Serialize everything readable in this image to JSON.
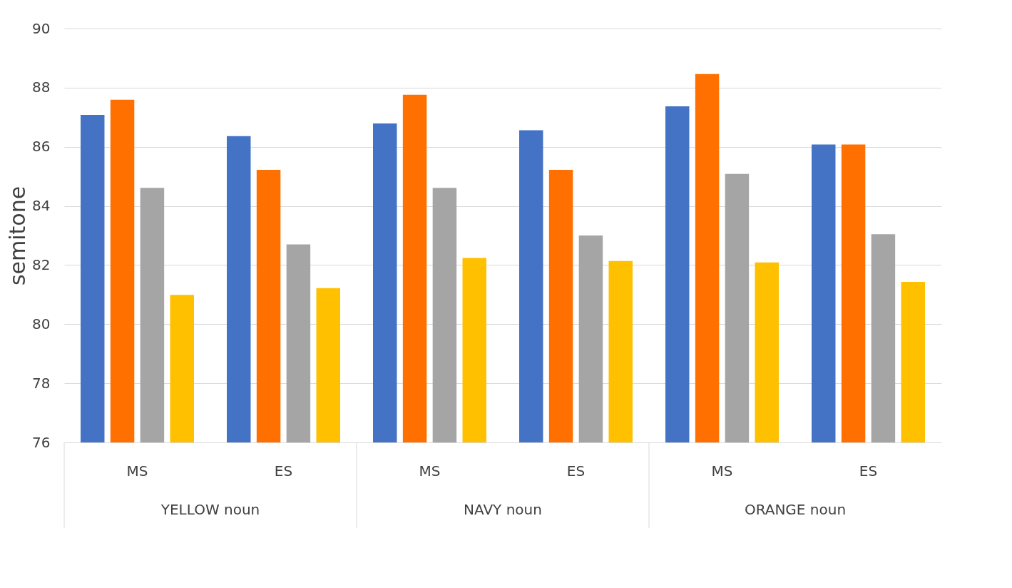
{
  "chart_data": {
    "type": "bar",
    "ylabel": "semitone",
    "categories": [
      "MS",
      "ES",
      "MS",
      "ES",
      "MS",
      "ES"
    ],
    "annotations": [
      "YELLOW noun",
      "NAVY noun",
      "ORANGE noun"
    ],
    "series": [
      {
        "color": "#4472c4",
        "values": [
          87.08,
          86.36,
          86.79,
          86.56,
          87.37,
          86.08
        ]
      },
      {
        "color": "#ff7000",
        "values": [
          87.59,
          85.22,
          87.76,
          85.22,
          88.46,
          86.08
        ]
      },
      {
        "color": "#a5a5a5",
        "values": [
          84.61,
          82.7,
          84.61,
          83.0,
          85.08,
          83.04
        ]
      },
      {
        "color": "#ffc000",
        "values": [
          80.99,
          81.22,
          82.24,
          82.14,
          82.09,
          81.43
        ]
      }
    ],
    "ylim": [
      76,
      90
    ],
    "yticks": [
      76,
      78,
      80,
      82,
      84,
      86,
      88,
      90
    ],
    "grid": "y",
    "legend": false
  }
}
